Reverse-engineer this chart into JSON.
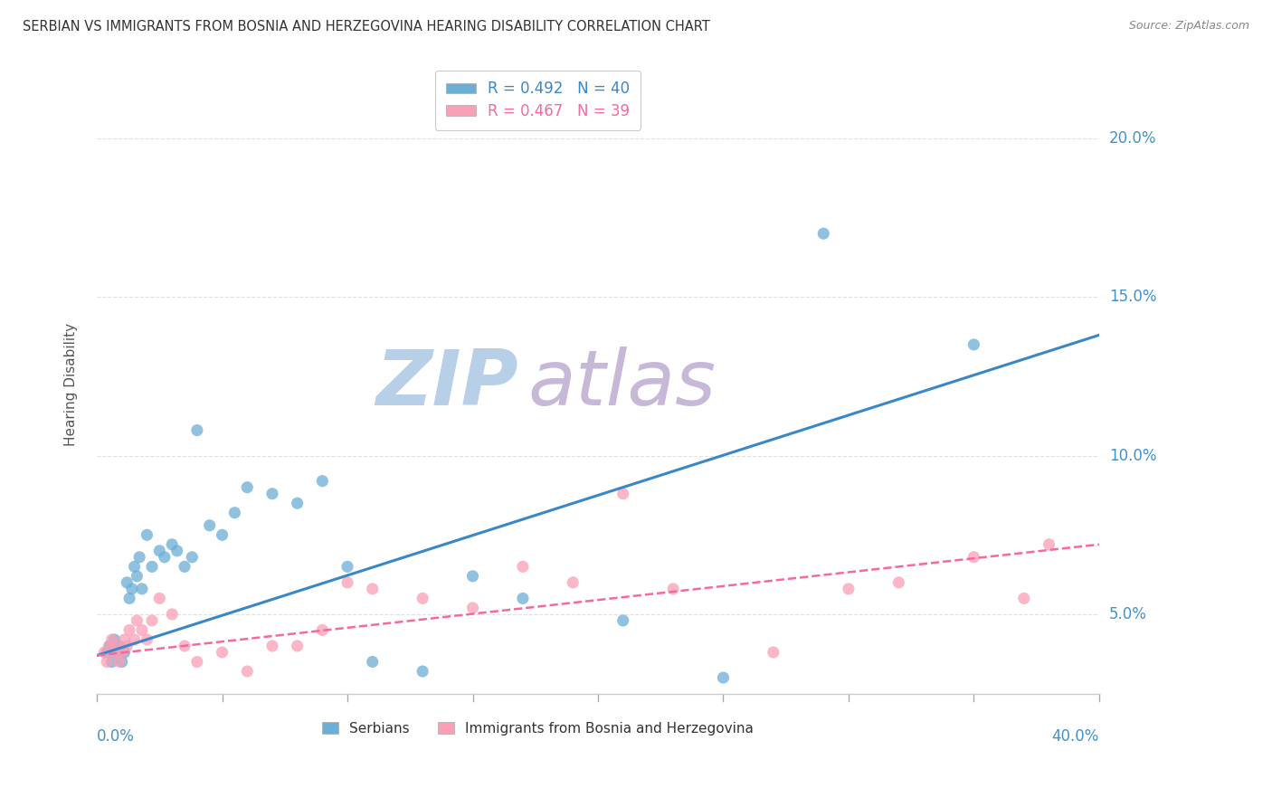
{
  "title": "SERBIAN VS IMMIGRANTS FROM BOSNIA AND HERZEGOVINA HEARING DISABILITY CORRELATION CHART",
  "source": "Source: ZipAtlas.com",
  "ylabel": "Hearing Disability",
  "ytick_labels": [
    "5.0%",
    "10.0%",
    "15.0%",
    "20.0%"
  ],
  "ytick_values": [
    0.05,
    0.1,
    0.15,
    0.2
  ],
  "xlim": [
    0.0,
    0.4
  ],
  "ylim": [
    0.025,
    0.22
  ],
  "legend_r1": "R = 0.492   N = 40",
  "legend_r2": "R = 0.467   N = 39",
  "blue_color": "#6baed6",
  "pink_color": "#fa9fb5",
  "blue_line_color": "#3a87c8",
  "pink_line_color": "#f768a1",
  "axis_label_color": "#4292c6",
  "title_color": "#333333",
  "watermark_zip_color": "#b8cfe8",
  "watermark_atlas_color": "#c8b8d8",
  "background_color": "#ffffff",
  "grid_color": "#e0e0e0",
  "serbian_x": [
    0.004,
    0.005,
    0.006,
    0.007,
    0.008,
    0.009,
    0.01,
    0.011,
    0.012,
    0.013,
    0.014,
    0.015,
    0.016,
    0.017,
    0.018,
    0.02,
    0.022,
    0.025,
    0.027,
    0.03,
    0.032,
    0.035,
    0.038,
    0.04,
    0.045,
    0.05,
    0.055,
    0.06,
    0.07,
    0.08,
    0.09,
    0.1,
    0.11,
    0.13,
    0.15,
    0.17,
    0.21,
    0.25,
    0.29,
    0.35
  ],
  "serbian_y": [
    0.038,
    0.04,
    0.035,
    0.042,
    0.038,
    0.04,
    0.035,
    0.038,
    0.06,
    0.055,
    0.058,
    0.065,
    0.062,
    0.068,
    0.058,
    0.075,
    0.065,
    0.07,
    0.068,
    0.072,
    0.07,
    0.065,
    0.068,
    0.108,
    0.078,
    0.075,
    0.082,
    0.09,
    0.088,
    0.085,
    0.092,
    0.065,
    0.035,
    0.032,
    0.062,
    0.055,
    0.048,
    0.03,
    0.17,
    0.135
  ],
  "bosnian_x": [
    0.003,
    0.004,
    0.005,
    0.006,
    0.007,
    0.008,
    0.009,
    0.01,
    0.011,
    0.012,
    0.013,
    0.015,
    0.016,
    0.018,
    0.02,
    0.022,
    0.025,
    0.03,
    0.035,
    0.04,
    0.05,
    0.06,
    0.07,
    0.08,
    0.09,
    0.1,
    0.11,
    0.13,
    0.15,
    0.17,
    0.19,
    0.21,
    0.23,
    0.27,
    0.3,
    0.32,
    0.35,
    0.37,
    0.38
  ],
  "bosnian_y": [
    0.038,
    0.035,
    0.04,
    0.042,
    0.038,
    0.04,
    0.035,
    0.038,
    0.042,
    0.04,
    0.045,
    0.042,
    0.048,
    0.045,
    0.042,
    0.048,
    0.055,
    0.05,
    0.04,
    0.035,
    0.038,
    0.032,
    0.04,
    0.04,
    0.045,
    0.06,
    0.058,
    0.055,
    0.052,
    0.065,
    0.06,
    0.088,
    0.058,
    0.038,
    0.058,
    0.06,
    0.068,
    0.055,
    0.072
  ],
  "serbian_trend_x": [
    0.0,
    0.4
  ],
  "serbian_trend_y": [
    0.037,
    0.138
  ],
  "bosnian_trend_x": [
    0.0,
    0.4
  ],
  "bosnian_trend_y": [
    0.037,
    0.072
  ]
}
